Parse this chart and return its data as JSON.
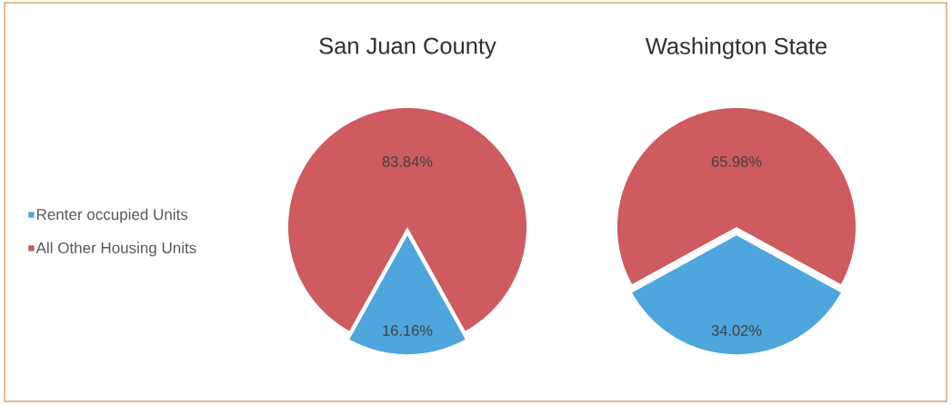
{
  "chart_data": {
    "type": "pie",
    "categories": [
      "Renter occupied Units",
      "All Other Housing Units"
    ],
    "colors": [
      "#4ea6dc",
      "#cd5b60"
    ],
    "series": [
      {
        "name": "San Juan County",
        "values": [
          16.16,
          83.84
        ],
        "value_labels": [
          "16.16%",
          "83.84%"
        ]
      },
      {
        "name": "Washington State",
        "values": [
          34.02,
          65.98
        ],
        "value_labels": [
          "34.02%",
          "65.98%"
        ]
      }
    ],
    "legend": "left"
  }
}
